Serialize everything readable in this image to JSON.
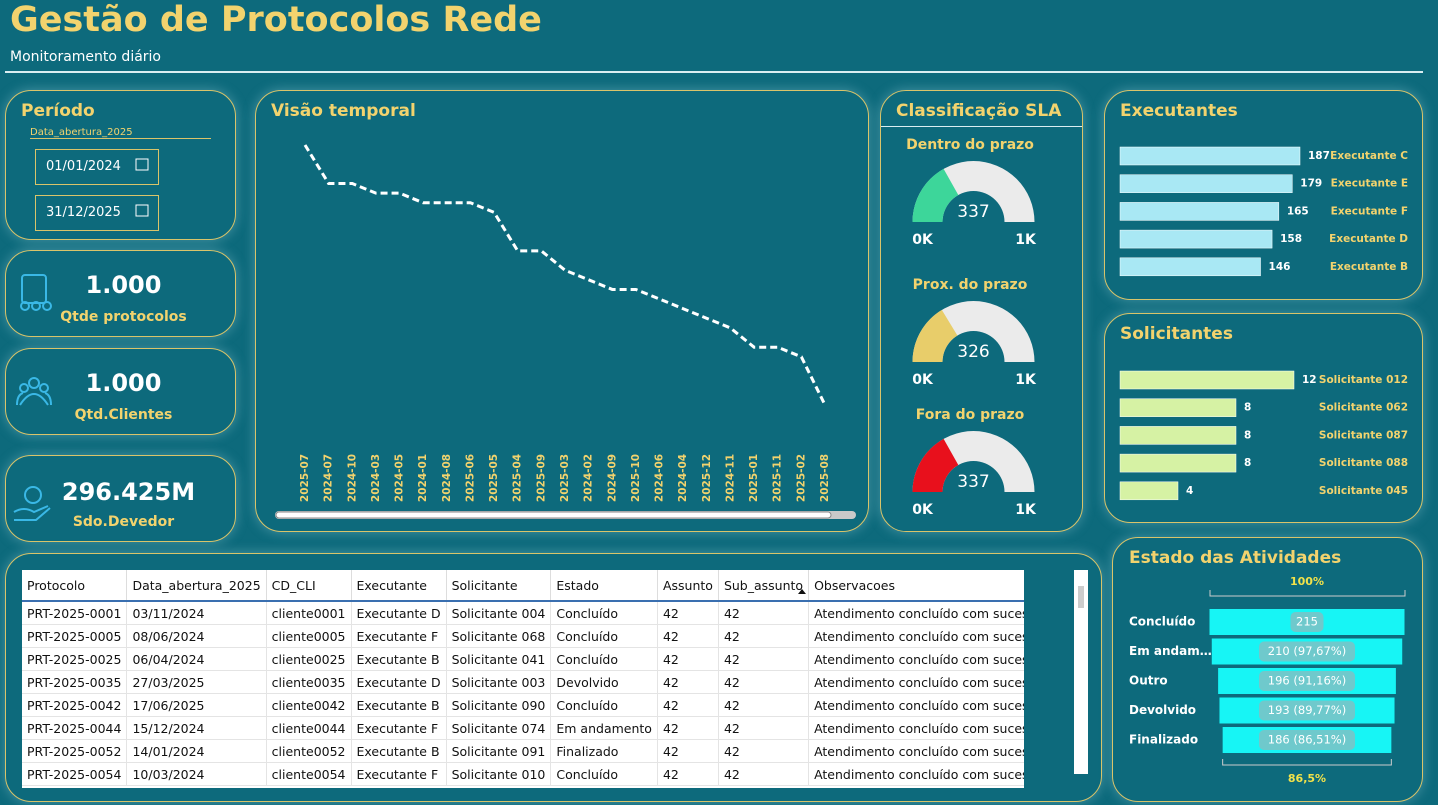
{
  "header": {
    "title": "Gestão de Protocolos Rede",
    "subtitle": "Monitoramento diário"
  },
  "periodo": {
    "title": "Período",
    "field": "Data_abertura_2025",
    "start": "01/01/2024",
    "end": "31/12/2025"
  },
  "kpis": [
    {
      "value": "1.000",
      "label": "Qtde  protocolos"
    },
    {
      "value": "1.000",
      "label": "Qtd.Clientes"
    },
    {
      "value": "296.425M",
      "label": "Sdo.Devedor"
    }
  ],
  "timeline": {
    "type": "line",
    "title": "Visão temporal",
    "color": "#ffffff",
    "categories": [
      "2025-07",
      "2024-07",
      "2024-10",
      "2024-03",
      "2024-05",
      "2024-01",
      "2024-08",
      "2025-06",
      "2025-05",
      "2025-04",
      "2025-09",
      "2025-03",
      "2024-02",
      "2024-09",
      "2025-10",
      "2024-06",
      "2024-04",
      "2025-12",
      "2024-11",
      "2025-01",
      "2025-11",
      "2025-02",
      "2025-08"
    ],
    "values": [
      52,
      48,
      48,
      47,
      47,
      46,
      46,
      46,
      45,
      41,
      41,
      39,
      38,
      37,
      37,
      36,
      35,
      34,
      33,
      31,
      31,
      30,
      25
    ]
  },
  "sla": {
    "title": "Classificação SLA",
    "gauges": [
      {
        "type": "gauge",
        "label": "Dentro do prazo",
        "value": 337,
        "color": "#3dd69a",
        "min": {
          "value": 0,
          "label": "0K"
        },
        "max": {
          "value": 1000,
          "label": "1K"
        }
      },
      {
        "type": "gauge",
        "label": "Prox. do prazo",
        "value": 326,
        "color": "#e8cd6a",
        "min": {
          "value": 0,
          "label": "0K"
        },
        "max": {
          "value": 1000,
          "label": "1K"
        }
      },
      {
        "type": "gauge",
        "label": "Fora do prazo",
        "value": 337,
        "color": "#e8101c",
        "min": {
          "value": 0,
          "label": "0K"
        },
        "max": {
          "value": 1000,
          "label": "1K"
        }
      }
    ]
  },
  "executantes": {
    "type": "bar",
    "title": "Executantes",
    "color": "#a9e8f4",
    "categories": [
      "Executante C",
      "Executante E",
      "Executante F",
      "Executante D",
      "Executante B"
    ],
    "values": [
      187,
      179,
      165,
      158,
      146
    ]
  },
  "solicitantes": {
    "type": "bar",
    "title": "Solicitantes",
    "color": "#d6f2a4",
    "categories": [
      "Solicitante 012",
      "Solicitante 062",
      "Solicitante 087",
      "Solicitante 088",
      "Solicitante 045"
    ],
    "values": [
      12,
      8,
      8,
      8,
      4
    ]
  },
  "estado": {
    "type": "funnel",
    "title": "Estado das Atividades",
    "color": "#17f5f5",
    "categories": [
      "Concluído",
      "Em andam…",
      "Outro",
      "Devolvido",
      "Finalizado"
    ],
    "values": [
      215,
      210,
      196,
      193,
      186
    ],
    "value_labels": [
      "215",
      "210 (97,67%)",
      "196 (91,16%)",
      "193 (89,77%)",
      "186 (86,51%)"
    ],
    "top_label": "100%",
    "bottom_label": "86,5%"
  },
  "table": {
    "columns": [
      "Protocolo",
      "Data_abertura_2025",
      "CD_CLI",
      "Executante",
      "Solicitante",
      "Estado",
      "Assunto",
      "Sub_assunto",
      "Observacoes"
    ],
    "rows": [
      [
        "PRT-2025-0001",
        "03/11/2024",
        "cliente0001",
        "Executante D",
        "Solicitante 004",
        "Concluído",
        42,
        42,
        "Atendimento concluído com sucesso."
      ],
      [
        "PRT-2025-0005",
        "08/06/2024",
        "cliente0005",
        "Executante F",
        "Solicitante 068",
        "Concluído",
        42,
        42,
        "Atendimento concluído com sucesso."
      ],
      [
        "PRT-2025-0025",
        "06/04/2024",
        "cliente0025",
        "Executante B",
        "Solicitante 041",
        "Concluído",
        42,
        42,
        "Atendimento concluído com sucesso."
      ],
      [
        "PRT-2025-0035",
        "27/03/2025",
        "cliente0035",
        "Executante D",
        "Solicitante 003",
        "Devolvido",
        42,
        42,
        "Atendimento concluído com sucesso."
      ],
      [
        "PRT-2025-0042",
        "17/06/2025",
        "cliente0042",
        "Executante B",
        "Solicitante 090",
        "Concluído",
        42,
        42,
        "Atendimento concluído com sucesso."
      ],
      [
        "PRT-2025-0044",
        "15/12/2024",
        "cliente0044",
        "Executante F",
        "Solicitante 074",
        "Em andamento",
        42,
        42,
        "Atendimento concluído com sucesso."
      ],
      [
        "PRT-2025-0052",
        "14/01/2024",
        "cliente0052",
        "Executante B",
        "Solicitante 091",
        "Finalizado",
        42,
        42,
        "Atendimento concluído com sucesso."
      ],
      [
        "PRT-2025-0054",
        "10/03/2024",
        "cliente0054",
        "Executante F",
        "Solicitante 010",
        "Concluído",
        42,
        42,
        "Atendimento concluído com sucesso."
      ]
    ]
  }
}
